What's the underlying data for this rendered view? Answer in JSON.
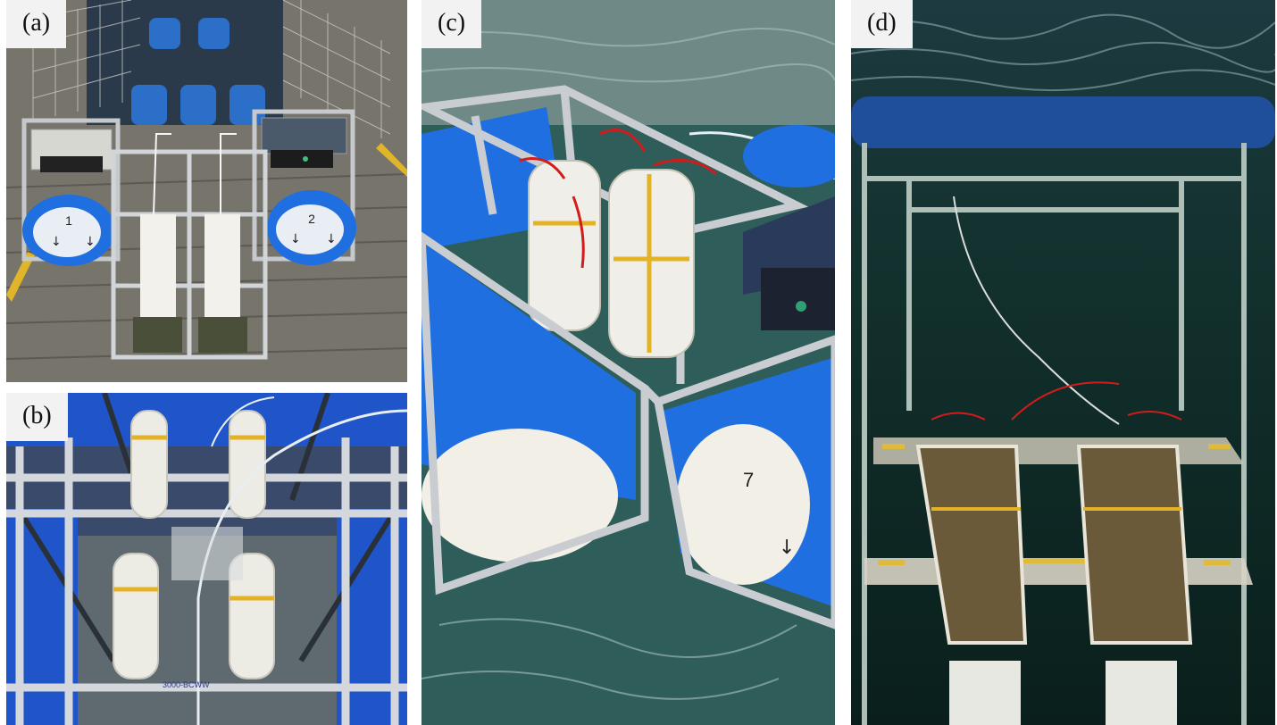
{
  "figure": {
    "panels": [
      {
        "id": "a",
        "label": "(a)",
        "float_left_digit": "1",
        "float_right_digit": "2"
      },
      {
        "id": "b",
        "label": "(b)",
        "note": "3000-BCWW"
      },
      {
        "id": "c",
        "label": "(c)",
        "float_digit": "7"
      },
      {
        "id": "d",
        "label": "(d)"
      }
    ]
  },
  "colors": {
    "float_blue": "#1f6fe0",
    "frame_aluminum": "#c9cdd2",
    "water_teal": "#2f5e5a",
    "water_dark": "#0d2a26",
    "deck_wood": "#8a8780",
    "rope_red": "#d21c1c",
    "strap_yellow": "#e3b325"
  }
}
